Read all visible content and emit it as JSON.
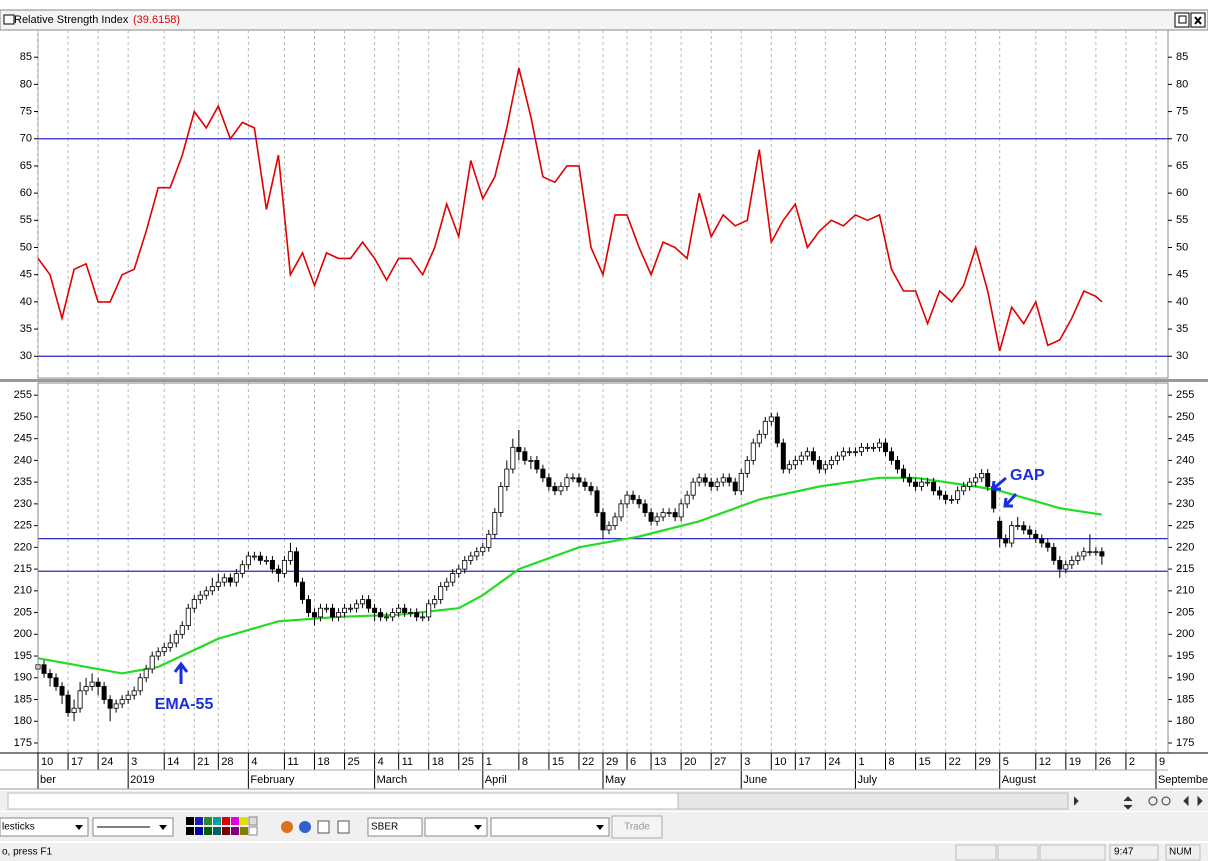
{
  "ui": {
    "status_text": "o, press F1",
    "clock": "9:47",
    "num_lock": "NUM",
    "chart_style": "lesticks",
    "symbol": "SBER",
    "trade_button": "Trade"
  },
  "chart_data": [
    {
      "type": "line",
      "title": "Relative Strength Index",
      "title_value": "(39.6158)",
      "color": "#e00000",
      "xlim": [
        0,
        188
      ],
      "ylim": [
        26,
        90
      ],
      "yticks": [
        30,
        35,
        40,
        45,
        50,
        55,
        60,
        65,
        70,
        75,
        80,
        85
      ],
      "hlines": [
        70,
        30
      ],
      "hline_color": "#2a2ac8",
      "x": [
        0,
        2,
        4,
        6,
        8,
        10,
        12,
        14,
        16,
        18,
        20,
        22,
        24,
        26,
        28,
        30,
        32,
        34,
        36,
        38,
        40,
        42,
        44,
        46,
        48,
        50,
        52,
        54,
        56,
        58,
        60,
        62,
        64,
        66,
        68,
        70,
        72,
        74,
        76,
        78,
        80,
        82,
        84,
        86,
        88,
        90,
        92,
        94,
        96,
        98,
        100,
        102,
        104,
        106,
        108,
        110,
        112,
        114,
        116,
        118,
        120,
        122,
        124,
        126,
        128,
        130,
        132,
        134,
        136,
        138,
        140,
        142,
        144,
        146,
        148,
        150,
        152,
        154,
        156,
        158,
        160,
        162,
        164,
        166,
        168,
        170,
        172,
        174,
        176,
        177
      ],
      "values": [
        48,
        45,
        37,
        46,
        47,
        40,
        40,
        45,
        46,
        53,
        61,
        61,
        67,
        75,
        72,
        76,
        70,
        73,
        72,
        57,
        67,
        45,
        49,
        43,
        49,
        48,
        48,
        51,
        48,
        44,
        48,
        48,
        45,
        50,
        58,
        52,
        66,
        59,
        63,
        72,
        83,
        74,
        63,
        62,
        65,
        65,
        50,
        45,
        56,
        56,
        50,
        45,
        51,
        50,
        48,
        60,
        52,
        56,
        54,
        55,
        68,
        51,
        55,
        58,
        50,
        53,
        55,
        54,
        56,
        55,
        56,
        46,
        42,
        42,
        36,
        42,
        40,
        43,
        50,
        42,
        31,
        39,
        36,
        40,
        32,
        33,
        37,
        42,
        41,
        40
      ]
    },
    {
      "type": "candlestick",
      "up_color": "#ffffff",
      "down_color": "#000000",
      "xlim": [
        0,
        188
      ],
      "ylim": [
        172.7,
        257.8
      ],
      "yticks": [
        175,
        180,
        185,
        190,
        195,
        200,
        205,
        210,
        215,
        220,
        225,
        230,
        235,
        240,
        245,
        250,
        255
      ],
      "hlines": [
        222,
        214.5
      ],
      "hline_color": "#2a2ac8",
      "xticks": [
        {
          "value": 0,
          "label": "10"
        },
        {
          "value": 5,
          "label": "17"
        },
        {
          "value": 10,
          "label": "24"
        },
        {
          "value": 15,
          "label": "3"
        },
        {
          "value": 21,
          "label": "14"
        },
        {
          "value": 26,
          "label": "21"
        },
        {
          "value": 30,
          "label": "28"
        },
        {
          "value": 35,
          "label": "4"
        },
        {
          "value": 41,
          "label": "11"
        },
        {
          "value": 46,
          "label": "18"
        },
        {
          "value": 51,
          "label": "25"
        },
        {
          "value": 56,
          "label": "4"
        },
        {
          "value": 60,
          "label": "11"
        },
        {
          "value": 65,
          "label": "18"
        },
        {
          "value": 70,
          "label": "25"
        },
        {
          "value": 74,
          "label": "1"
        },
        {
          "value": 80,
          "label": "8"
        },
        {
          "value": 85,
          "label": "15"
        },
        {
          "value": 90,
          "label": "22"
        },
        {
          "value": 94,
          "label": "29"
        },
        {
          "value": 98,
          "label": "6"
        },
        {
          "value": 102,
          "label": "13"
        },
        {
          "value": 107,
          "label": "20"
        },
        {
          "value": 112,
          "label": "27"
        },
        {
          "value": 117,
          "label": "3"
        },
        {
          "value": 122,
          "label": "10"
        },
        {
          "value": 126,
          "label": "17"
        },
        {
          "value": 131,
          "label": "24"
        },
        {
          "value": 136,
          "label": "1"
        },
        {
          "value": 141,
          "label": "8"
        },
        {
          "value": 146,
          "label": "15"
        },
        {
          "value": 151,
          "label": "22"
        },
        {
          "value": 156,
          "label": "29"
        },
        {
          "value": 160,
          "label": "5"
        },
        {
          "value": 166,
          "label": "12"
        },
        {
          "value": 171,
          "label": "19"
        },
        {
          "value": 176,
          "label": "26"
        },
        {
          "value": 181,
          "label": "2"
        },
        {
          "value": 186,
          "label": "9"
        }
      ],
      "month_ticks": [
        {
          "value": 0,
          "label": "ber"
        },
        {
          "value": 15,
          "label": "2019"
        },
        {
          "value": 35,
          "label": "February"
        },
        {
          "value": 56,
          "label": "March"
        },
        {
          "value": 74,
          "label": "April"
        },
        {
          "value": 94,
          "label": "May"
        },
        {
          "value": 117,
          "label": "June"
        },
        {
          "value": 136,
          "label": "July"
        },
        {
          "value": 160,
          "label": "August"
        },
        {
          "value": 186,
          "label": "September"
        }
      ],
      "open": [
        192,
        193,
        191,
        190,
        188,
        186,
        182,
        183,
        187,
        188,
        189,
        188,
        185,
        183,
        184,
        185,
        186,
        187,
        190,
        192,
        195,
        196,
        197,
        198,
        200,
        202,
        206,
        208,
        209,
        210,
        211,
        212,
        213,
        212,
        214,
        216,
        218,
        218,
        217,
        217,
        215,
        214,
        217,
        219,
        212,
        208,
        205,
        204,
        206,
        206,
        204,
        205,
        206,
        206,
        207,
        208,
        206,
        205,
        204,
        204,
        205,
        206,
        205,
        205,
        204,
        204,
        207,
        208,
        211,
        212,
        214,
        215,
        217,
        218,
        219,
        220,
        223,
        228,
        234,
        238,
        243,
        242,
        240,
        240,
        238,
        236,
        234,
        233,
        234,
        236,
        236,
        235,
        234,
        233,
        228,
        224,
        225,
        227,
        230,
        232,
        231,
        230,
        228,
        226,
        227,
        228,
        228,
        227,
        230,
        232,
        235,
        236,
        235,
        234,
        235,
        236,
        235,
        233,
        237,
        240,
        244,
        246,
        249,
        250,
        244,
        238,
        239,
        240,
        241,
        242,
        240,
        238,
        239,
        240,
        241,
        242,
        242,
        242,
        243,
        243,
        243,
        244,
        242,
        240,
        238,
        236,
        235,
        234,
        235,
        235,
        233,
        232,
        231,
        231,
        233,
        234,
        235,
        236,
        237,
        234,
        226,
        222,
        221,
        225,
        225,
        224,
        223,
        222,
        221,
        220,
        217,
        215,
        216,
        217,
        218,
        219,
        219,
        219
      ],
      "high": [
        195,
        194,
        192,
        191,
        189,
        187,
        185,
        189,
        190,
        191,
        190,
        189,
        186,
        185,
        186,
        187,
        188,
        191,
        193,
        196,
        197,
        198,
        200,
        201,
        203,
        207,
        209,
        210,
        211,
        213,
        214,
        214,
        214,
        215,
        217,
        219,
        219,
        219,
        218,
        218,
        216,
        218,
        221,
        220,
        213,
        209,
        206,
        207,
        207,
        207,
        206,
        207,
        207,
        208,
        209,
        209,
        207,
        206,
        205,
        206,
        207,
        207,
        206,
        206,
        205,
        208,
        209,
        212,
        213,
        215,
        216,
        218,
        219,
        220,
        221,
        224,
        229,
        235,
        240,
        245,
        247,
        243,
        241,
        241,
        239,
        237,
        235,
        235,
        237,
        237,
        237,
        236,
        235,
        234,
        229,
        226,
        228,
        231,
        233,
        233,
        232,
        231,
        229,
        228,
        229,
        229,
        229,
        231,
        233,
        236,
        237,
        237,
        236,
        236,
        237,
        237,
        236,
        238,
        241,
        245,
        247,
        250,
        251,
        251,
        245,
        240,
        241,
        242,
        243,
        243,
        241,
        240,
        241,
        242,
        243,
        243,
        243,
        244,
        244,
        244,
        245,
        245,
        243,
        241,
        239,
        237,
        236,
        236,
        236,
        236,
        234,
        233,
        232,
        234,
        235,
        236,
        237,
        238,
        238,
        235,
        227,
        223,
        226,
        227,
        226,
        225,
        224,
        223,
        222,
        221,
        218,
        217,
        218,
        219,
        220,
        223,
        220,
        220
      ],
      "low": [
        191,
        190,
        188,
        187,
        184,
        181,
        180,
        182,
        186,
        187,
        186,
        184,
        180,
        182,
        183,
        184,
        185,
        186,
        189,
        191,
        194,
        195,
        196,
        197,
        199,
        201,
        205,
        207,
        208,
        209,
        210,
        211,
        211,
        211,
        213,
        215,
        217,
        216,
        216,
        214,
        212,
        213,
        216,
        211,
        207,
        204,
        202,
        203,
        205,
        203,
        203,
        204,
        205,
        205,
        206,
        205,
        203,
        203,
        203,
        203,
        204,
        204,
        204,
        203,
        203,
        203,
        206,
        207,
        210,
        211,
        213,
        214,
        216,
        217,
        218,
        219,
        222,
        227,
        233,
        237,
        240,
        239,
        238,
        237,
        235,
        233,
        232,
        232,
        233,
        235,
        234,
        233,
        232,
        227,
        222,
        223,
        224,
        226,
        229,
        230,
        229,
        227,
        225,
        225,
        226,
        227,
        226,
        226,
        229,
        231,
        234,
        234,
        233,
        233,
        234,
        234,
        232,
        232,
        236,
        239,
        243,
        245,
        248,
        243,
        237,
        237,
        238,
        239,
        240,
        239,
        237,
        237,
        238,
        239,
        240,
        241,
        241,
        241,
        242,
        242,
        242,
        241,
        239,
        237,
        235,
        234,
        233,
        233,
        234,
        232,
        231,
        230,
        230,
        230,
        232,
        233,
        234,
        235,
        233,
        228,
        220,
        220,
        220,
        224,
        223,
        222,
        221,
        220,
        219,
        216,
        213,
        214,
        215,
        216,
        217,
        218,
        218,
        216
      ],
      "close": [
        193,
        191,
        190,
        188,
        186,
        182,
        183,
        187,
        188,
        189,
        188,
        185,
        183,
        184,
        185,
        186,
        187,
        190,
        192,
        195,
        196,
        197,
        198,
        200,
        202,
        206,
        208,
        209,
        210,
        211,
        212,
        213,
        212,
        214,
        216,
        218,
        218,
        217,
        217,
        215,
        214,
        217,
        219,
        212,
        208,
        205,
        204,
        206,
        206,
        204,
        205,
        206,
        206,
        207,
        208,
        206,
        205,
        204,
        204,
        205,
        206,
        205,
        205,
        204,
        204,
        207,
        208,
        211,
        212,
        214,
        215,
        217,
        218,
        219,
        220,
        223,
        228,
        234,
        238,
        243,
        242,
        240,
        240,
        238,
        236,
        234,
        233,
        234,
        236,
        236,
        235,
        234,
        233,
        228,
        224,
        225,
        227,
        230,
        232,
        231,
        230,
        228,
        226,
        227,
        228,
        228,
        227,
        230,
        232,
        235,
        236,
        235,
        234,
        235,
        236,
        235,
        233,
        237,
        240,
        244,
        246,
        249,
        250,
        244,
        238,
        239,
        240,
        241,
        242,
        240,
        238,
        239,
        240,
        241,
        242,
        242,
        242,
        243,
        243,
        243,
        244,
        242,
        240,
        238,
        236,
        235,
        234,
        235,
        235,
        233,
        232,
        231,
        231,
        233,
        234,
        235,
        236,
        237,
        234,
        229,
        222,
        221,
        225,
        225,
        224,
        223,
        222,
        221,
        220,
        217,
        215,
        216,
        217,
        218,
        219,
        219,
        219,
        218
      ],
      "overlay": {
        "color": "#22dd22",
        "x": [
          0,
          10,
          14,
          20,
          30,
          40,
          50,
          60,
          70,
          74,
          80,
          90,
          100,
          110,
          120,
          130,
          140,
          146,
          156,
          160,
          170,
          177
        ],
        "values": [
          194.5,
          192,
          191,
          192.5,
          199,
          203,
          204,
          204.5,
          206,
          209,
          215,
          220,
          222.5,
          226,
          231,
          234,
          236,
          236,
          234,
          233,
          229,
          227.5
        ]
      },
      "annotations": [
        "EMA-55",
        "GAP"
      ]
    }
  ]
}
